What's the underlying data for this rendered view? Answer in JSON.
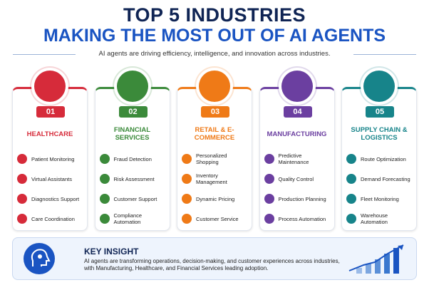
{
  "header": {
    "title_line1": "TOP 5 INDUSTRIES",
    "title_line2": "MAKING THE MOST OUT OF AI AGENTS",
    "subtitle": "AI agents are driving efficiency, intelligence, and innovation across industries."
  },
  "industries": [
    {
      "number": "01",
      "title": "HEALTHCARE",
      "color": "#d62b3a",
      "items": [
        "Patient Monitoring",
        "Virtual Assistants",
        "Diagnostics Support",
        "Care Coordination"
      ]
    },
    {
      "number": "02",
      "title": "FINANCIAL SERVICES",
      "color": "#3b8a3a",
      "items": [
        "Fraud Detection",
        "Risk Assessment",
        "Customer Support",
        "Compliance Automation"
      ]
    },
    {
      "number": "03",
      "title": "RETAIL & E-COMMERCE",
      "color": "#ef7a17",
      "items": [
        "Personalized Shopping",
        "Inventory Management",
        "Dynamic Pricing",
        "Customer Service"
      ]
    },
    {
      "number": "04",
      "title": "MANUFACTURING",
      "color": "#6b3fa0",
      "items": [
        "Predictive Maintenance",
        "Quality Control",
        "Production Planning",
        "Process Automation"
      ]
    },
    {
      "number": "05",
      "title": "SUPPLY CHAIN & LOGISTICS",
      "color": "#17848a",
      "items": [
        "Route Optimization",
        "Demand Forecasting",
        "Fleet Monitoring",
        "Warehouse Automation"
      ]
    }
  ],
  "insight": {
    "title": "KEY INSIGHT",
    "text": "AI agents are transforming operations, decision-making, and customer experiences across industries, with Manufacturing, Healthcare, and Financial Services leading adoption."
  }
}
